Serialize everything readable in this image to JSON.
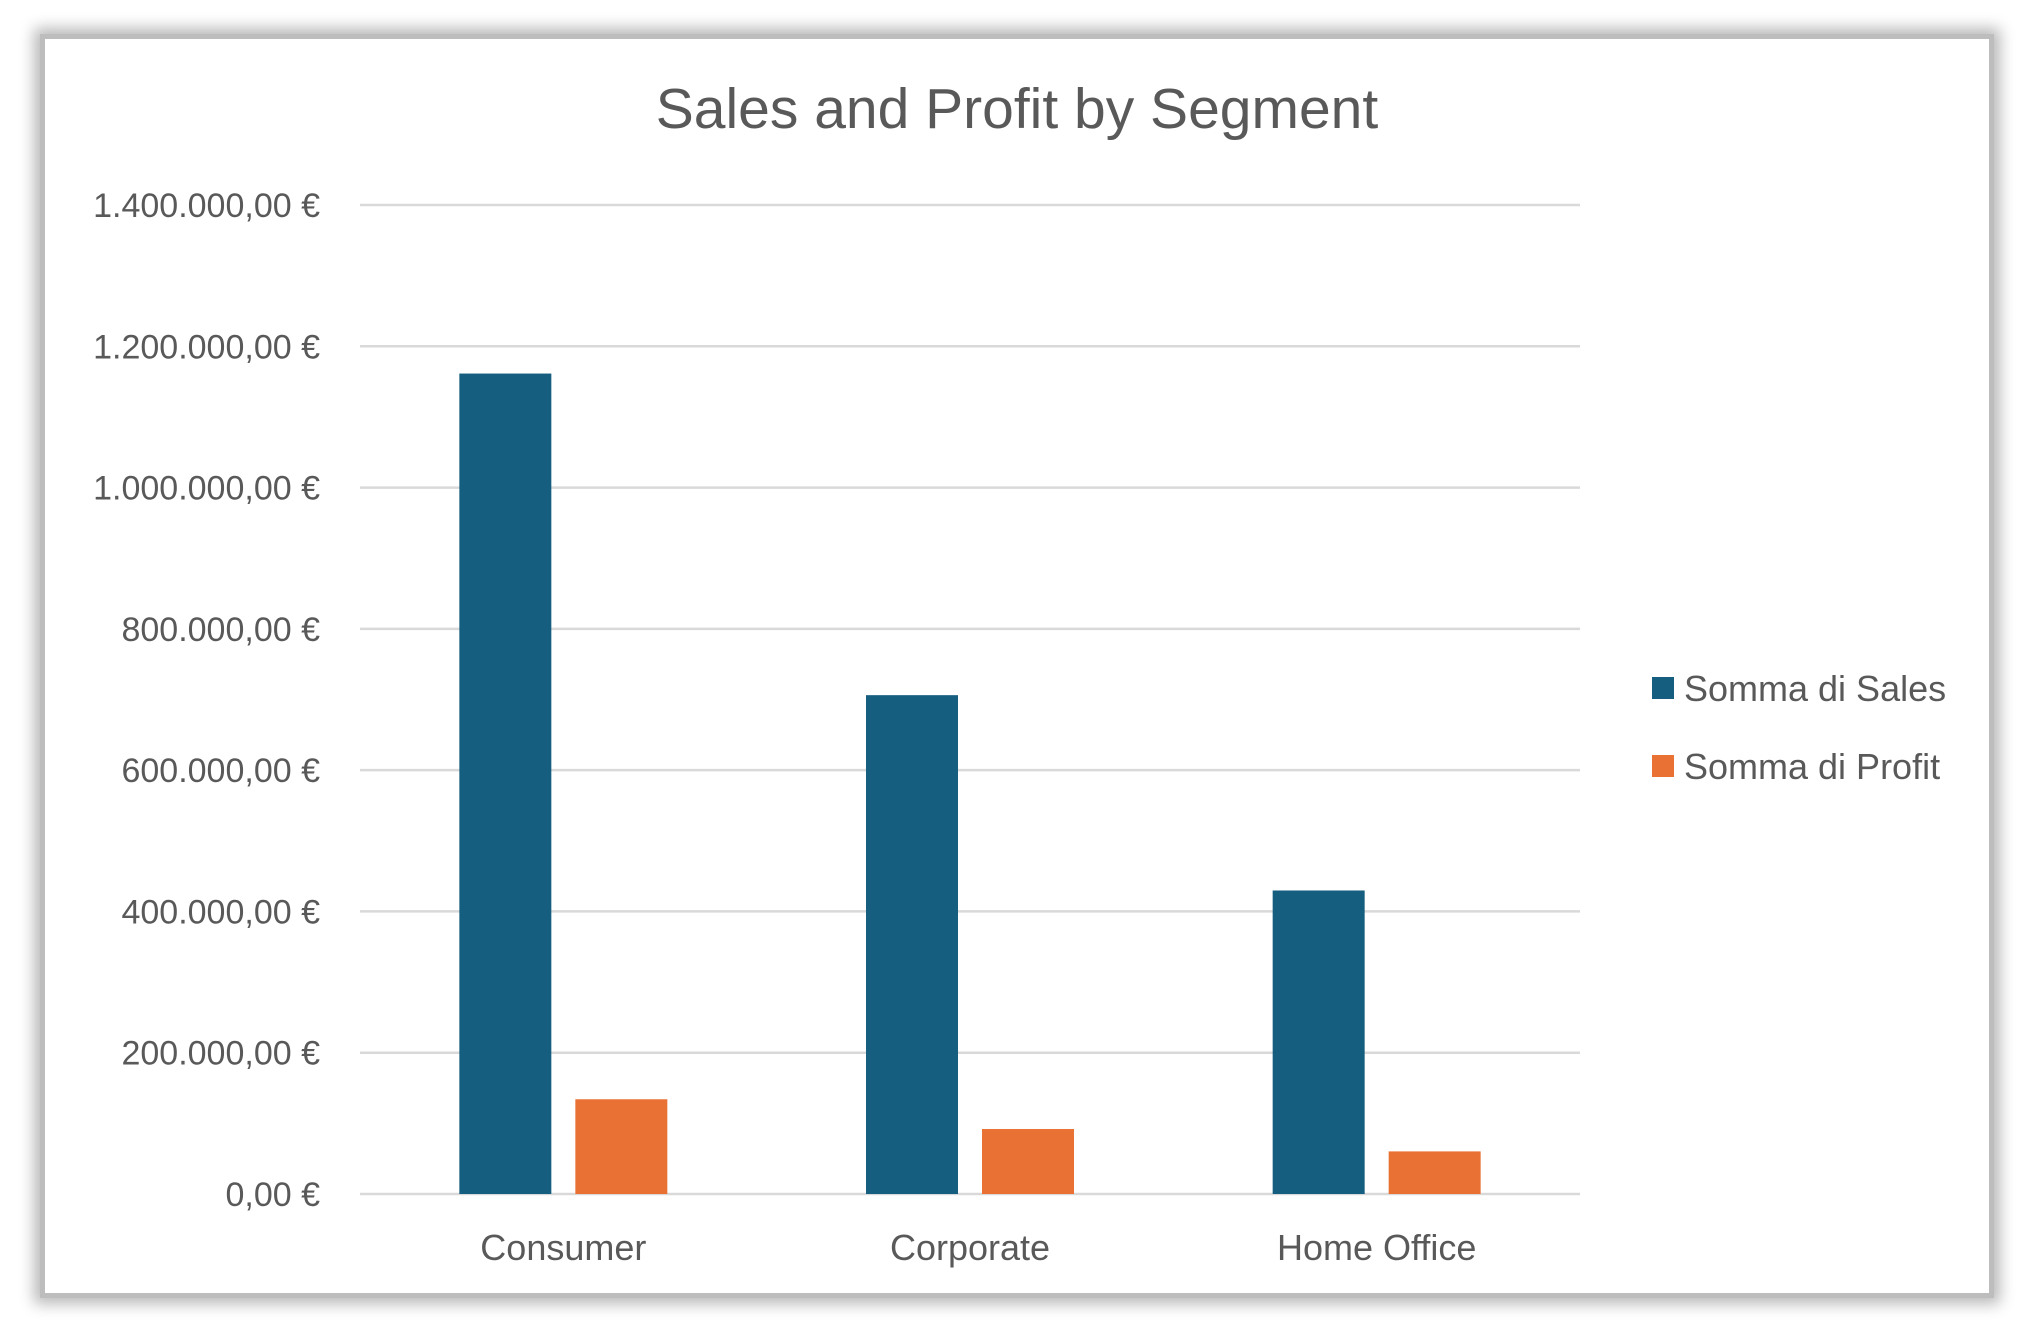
{
  "chart_data": {
    "type": "bar",
    "title": "Sales and Profit by Segment",
    "categories": [
      "Consumer",
      "Corporate",
      "Home Office"
    ],
    "series": [
      {
        "name": "Somma di Sales",
        "color": "#165e80",
        "values": [
          1161401,
          706146,
          429653
        ]
      },
      {
        "name": "Somma di Profit",
        "color": "#ea7134",
        "values": [
          134119,
          91979,
          60299
        ]
      }
    ],
    "ylim": [
      0,
      1400000
    ],
    "yticks": [
      0,
      200000,
      400000,
      600000,
      800000,
      1000000,
      1200000,
      1400000
    ],
    "ytick_labels": [
      "0,00 €",
      "200.000,00 €",
      "400.000,00 €",
      "600.000,00 €",
      "800.000,00 €",
      "1.000.000,00 €",
      "1.200.000,00 €",
      "1.400.000,00 €"
    ],
    "grid": true,
    "legend_position": "right"
  }
}
